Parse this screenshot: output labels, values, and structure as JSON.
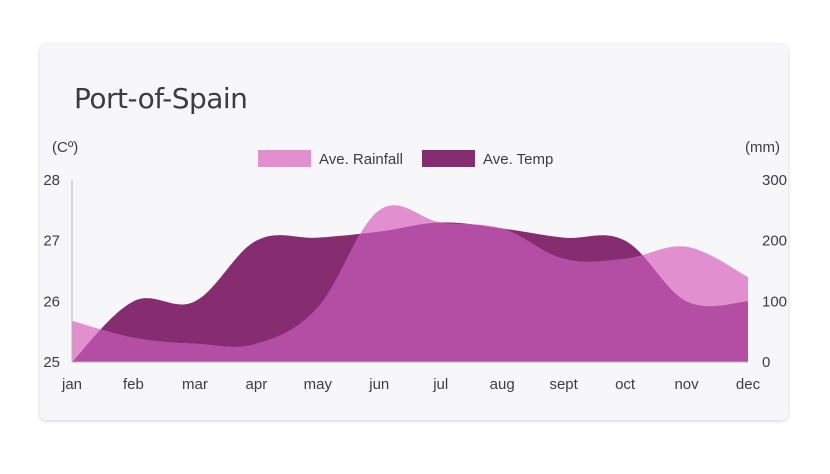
{
  "title": "Port-of-Spain",
  "colors": {
    "rainfall": "#e28fd0",
    "temp": "#862d72",
    "overlap": "#b44ea4",
    "card_background": "#f7f7f9",
    "text": "#3b3d42"
  },
  "chart_data": {
    "type": "area",
    "title": "Port-of-Spain",
    "categories": [
      "jan",
      "feb",
      "mar",
      "apr",
      "may",
      "jun",
      "jul",
      "aug",
      "sept",
      "oct",
      "nov",
      "dec"
    ],
    "series": [
      {
        "name": "Ave. Rainfall",
        "axis": "right",
        "values": [
          68,
          40,
          30,
          30,
          90,
          250,
          230,
          220,
          170,
          170,
          190,
          140
        ]
      },
      {
        "name": "Ave. Temp",
        "axis": "left",
        "values": [
          25.0,
          26.0,
          26.0,
          27.0,
          27.05,
          27.15,
          27.3,
          27.2,
          27.05,
          27.0,
          26.0,
          26.0
        ]
      }
    ],
    "left_axis": {
      "label": "(Cº)",
      "ylim": [
        25,
        28
      ],
      "ticks": [
        "25",
        "26",
        "27",
        "28"
      ]
    },
    "right_axis": {
      "label": "(mm)",
      "ylim": [
        0,
        300
      ],
      "ticks": [
        "0",
        "100",
        "200",
        "300"
      ]
    },
    "legend_position": "top-center",
    "grid": false
  }
}
